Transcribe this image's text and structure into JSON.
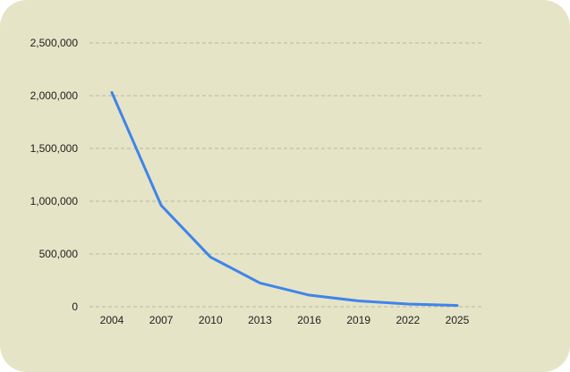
{
  "colors": {
    "background": "#e6e4c6",
    "line": "#3f84ec",
    "grid": "#b8b6a2",
    "text": "#1e1e1e"
  },
  "chart_data": {
    "type": "line",
    "title": "",
    "xlabel": "",
    "ylabel": "",
    "x": [
      2004,
      2007,
      2010,
      2013,
      2016,
      2019,
      2022,
      2025
    ],
    "series": [
      {
        "values": [
          2030000,
          960000,
          470000,
          225000,
          110000,
          55000,
          25000,
          12000
        ]
      }
    ],
    "xlim": [
      2004,
      2025
    ],
    "ylim": [
      0,
      2500000
    ],
    "y_ticks": [
      0,
      500000,
      1000000,
      1500000,
      2000000,
      2500000
    ],
    "x_ticks": [
      2004,
      2007,
      2010,
      2013,
      2016,
      2019,
      2022,
      2025
    ],
    "y_tick_labels": [
      "0",
      "500,000",
      "1,000,000",
      "1,500,000",
      "2,000,000",
      "2,500,000"
    ],
    "x_tick_labels": [
      "2004",
      "2007",
      "2010",
      "2013",
      "2016",
      "2019",
      "2022",
      "2025"
    ],
    "grid": true,
    "grid_style": "dashed",
    "legend": "none"
  }
}
